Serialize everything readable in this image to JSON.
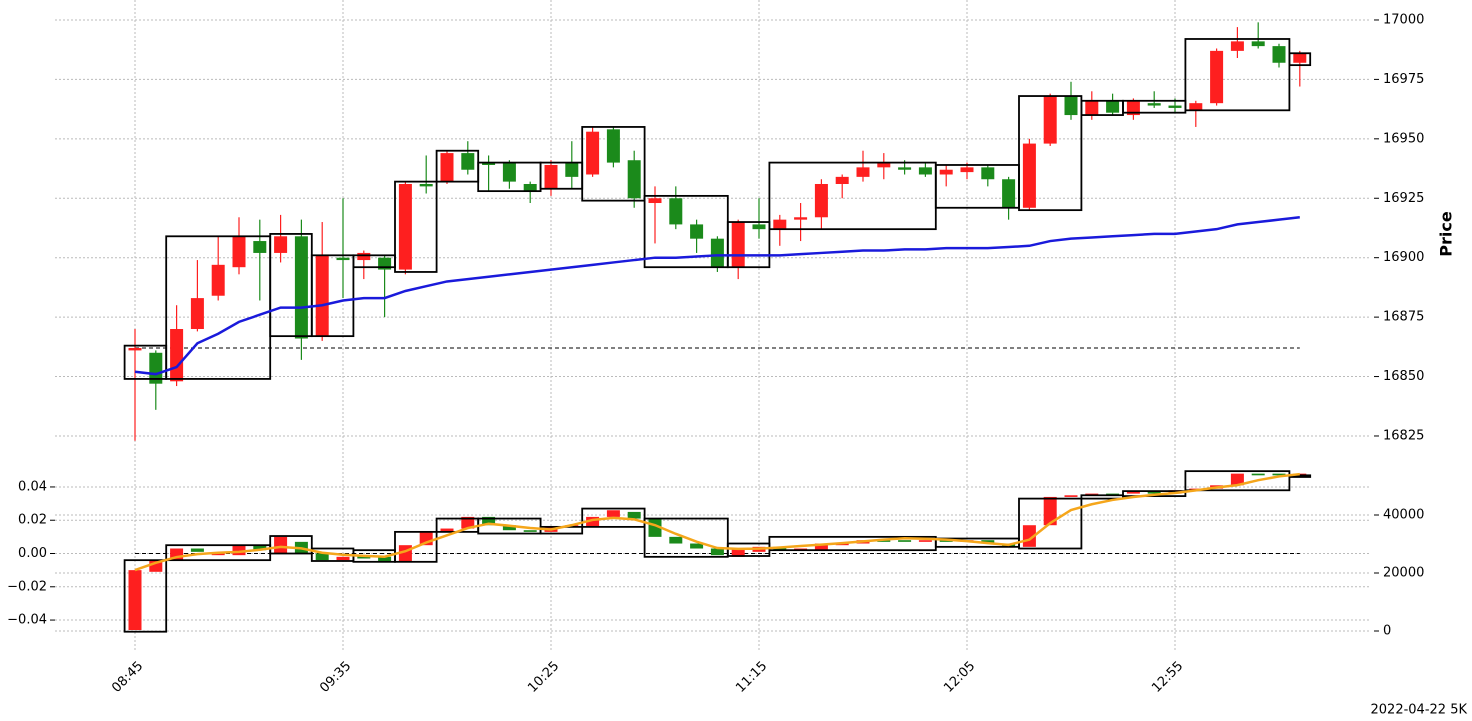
{
  "chart_data": [
    {
      "type": "candlestick",
      "ylabel": "Price",
      "categories": [
        "08:45",
        null,
        null,
        null,
        null,
        null,
        null,
        null,
        null,
        null,
        "09:35",
        null,
        null,
        null,
        null,
        null,
        null,
        null,
        null,
        null,
        "10:25",
        null,
        null,
        null,
        null,
        null,
        null,
        null,
        null,
        null,
        "11:15",
        null,
        null,
        null,
        null,
        null,
        null,
        null,
        null,
        null,
        "12:05",
        null,
        null,
        null,
        null,
        null,
        null,
        null,
        null,
        null,
        "12:55",
        null,
        null,
        null,
        null,
        null,
        null
      ],
      "open": [
        16861,
        16860,
        16848,
        16870,
        16884,
        16896,
        16907,
        16902,
        16909,
        16867,
        16900,
        16899,
        16900,
        16895,
        16931,
        16932,
        16944,
        16940,
        16940,
        16931,
        16929,
        16940,
        16935,
        16954,
        16941,
        16923,
        16925,
        16914,
        16908,
        16896,
        16914,
        16912,
        16916,
        16917,
        16931,
        16934,
        16938,
        16938,
        16938,
        16935,
        16936,
        16938,
        16933,
        16921,
        16948,
        16968,
        16960,
        16966,
        16960,
        16965,
        16964,
        16962,
        16965,
        16987,
        16991,
        16989,
        16982
      ],
      "high": [
        16870,
        16861,
        16880,
        16899,
        16909,
        16917,
        16916,
        16918,
        16916,
        16915,
        16925,
        16903,
        16901,
        16932,
        16943,
        16945,
        16949,
        16943,
        16941,
        16932,
        16941,
        16949,
        16955,
        16955,
        16945,
        16930,
        16930,
        16916,
        16909,
        16916,
        16925,
        16918,
        16923,
        16933,
        16935,
        16945,
        16944,
        16941,
        16940,
        16939,
        16940,
        16939,
        16934,
        16950,
        16969,
        16974,
        16970,
        16969,
        16967,
        16970,
        16967,
        16966,
        16988,
        16997,
        16999,
        16990,
        16987
      ],
      "low": [
        16823,
        16836,
        16846,
        16869,
        16882,
        16893,
        16882,
        16898,
        16857,
        16865,
        16883,
        16891,
        16875,
        16893,
        16927,
        16931,
        16935,
        16928,
        16929,
        16923,
        16926,
        16929,
        16934,
        16938,
        16921,
        16906,
        16912,
        16902,
        16894,
        16891,
        16908,
        16905,
        16907,
        16912,
        16925,
        16932,
        16933,
        16935,
        16934,
        16930,
        16933,
        16930,
        16916,
        16920,
        16947,
        16958,
        16958,
        16960,
        16958,
        16963,
        16961,
        16955,
        16964,
        16984,
        16988,
        16980,
        16972
      ],
      "close": [
        16862,
        16847,
        16870,
        16883,
        16897,
        16909,
        16902,
        16909,
        16866,
        16901,
        16899,
        16902,
        16895,
        16931,
        16930,
        16944,
        16937,
        16939,
        16932,
        16928,
        16939,
        16934,
        16953,
        16940,
        16925,
        16925,
        16914,
        16908,
        16896,
        16915,
        16912,
        16916,
        16917,
        16931,
        16934,
        16938,
        16940,
        16937,
        16935,
        16937,
        16938,
        16933,
        16921,
        16948,
        16968,
        16960,
        16966,
        16961,
        16966,
        16964,
        16963,
        16965,
        16987,
        16991,
        16989,
        16982,
        16986
      ],
      "up_color": "#fe1f1f",
      "down_color": "#1b8a1b",
      "boxes": [
        {
          "start": 0,
          "end": 1,
          "low": 16849,
          "high": 16863
        },
        {
          "start": 2,
          "end": 6,
          "low": 16849,
          "high": 16909
        },
        {
          "start": 7,
          "end": 8,
          "low": 16867,
          "high": 16910
        },
        {
          "start": 9,
          "end": 10,
          "low": 16867,
          "high": 16901
        },
        {
          "start": 11,
          "end": 12,
          "low": 16896,
          "high": 16901
        },
        {
          "start": 13,
          "end": 14,
          "low": 16894,
          "high": 16932
        },
        {
          "start": 15,
          "end": 16,
          "low": 16932,
          "high": 16945
        },
        {
          "start": 17,
          "end": 19,
          "low": 16928,
          "high": 16940
        },
        {
          "start": 20,
          "end": 21,
          "low": 16929,
          "high": 16940
        },
        {
          "start": 22,
          "end": 24,
          "low": 16924,
          "high": 16955
        },
        {
          "start": 25,
          "end": 28,
          "low": 16896,
          "high": 16926
        },
        {
          "start": 29,
          "end": 30,
          "low": 16896,
          "high": 16915
        },
        {
          "start": 31,
          "end": 38,
          "low": 16912,
          "high": 16940
        },
        {
          "start": 39,
          "end": 42,
          "low": 16921,
          "high": 16939
        },
        {
          "start": 43,
          "end": 45,
          "low": 16920,
          "high": 16968
        },
        {
          "start": 46,
          "end": 47,
          "low": 16960,
          "high": 16966
        },
        {
          "start": 48,
          "end": 50,
          "low": 16961,
          "high": 16966
        },
        {
          "start": 51,
          "end": 55,
          "low": 16962,
          "high": 16992
        },
        {
          "start": 56,
          "end": 56,
          "low": 16981,
          "high": 16986
        }
      ],
      "lines": [
        {
          "color": "#1a1adb",
          "values": [
            16852,
            16851,
            16854,
            16864,
            16868,
            16873,
            16876,
            16879,
            16879,
            16880,
            16882,
            16883,
            16883,
            16886,
            16888,
            16890,
            16891,
            16892,
            16893,
            16894,
            16895,
            16896,
            16897,
            16898,
            16899,
            16900,
            16900,
            16900.5,
            16901,
            16901,
            16901,
            16901,
            16901.5,
            16902,
            16902.5,
            16903,
            16903,
            16903.5,
            16903.5,
            16904,
            16904,
            16904,
            16904.5,
            16905,
            16907,
            16908,
            16908.5,
            16909,
            16909.5,
            16910,
            16910,
            16911,
            16912,
            16914,
            16915,
            16916,
            16917
          ]
        }
      ],
      "hlines": [
        {
          "value": 16862,
          "style": "dashed"
        }
      ],
      "ylim": [
        16817,
        17008.4
      ],
      "yticks": [
        16825,
        16850,
        16875,
        16900,
        16925,
        16950,
        16975,
        17000
      ],
      "grid": true
    },
    {
      "type": "candlestick",
      "open": [
        -0.046,
        -0.011,
        -0.004,
        0.003,
        -0.001,
        -0.001,
        0.005,
        0,
        0.007,
        0,
        -0.004,
        -0.001,
        -0.002,
        -0.005,
        0.005,
        0.013,
        0.015,
        0.022,
        0.017,
        0.014,
        0.013,
        0.016,
        0.016,
        0.022,
        0.025,
        0.021,
        0.01,
        0.006,
        0.003,
        -0.002,
        0.001,
        0.004,
        0.002,
        0.002,
        0.005,
        0.006,
        0.008,
        0.008,
        0.007,
        0.008,
        0.007,
        0.008,
        0.006,
        0.004,
        0.017,
        0.034,
        0.035,
        0.036,
        0.036,
        0.037,
        0.036,
        0.038,
        0.039,
        0.041,
        0.048,
        0.048,
        0.047
      ],
      "close": [
        -0.01,
        -0.004,
        0.003,
        0.001,
        0,
        0.005,
        0.002,
        0.01,
        0,
        -0.004,
        -0.002,
        -0.003,
        -0.005,
        0.005,
        0.013,
        0.015,
        0.022,
        0.017,
        0.014,
        0.013,
        0.016,
        0.017,
        0.022,
        0.026,
        0.021,
        0.01,
        0.006,
        0.003,
        -0.001,
        0.003,
        0.004,
        0.002,
        0.003,
        0.006,
        0.006,
        0.008,
        0.007,
        0.007,
        0.008,
        0.007,
        0.008,
        0.006,
        0.004,
        0.017,
        0.034,
        0.035,
        0.036,
        0.035,
        0.037,
        0.036,
        0.038,
        0.039,
        0.041,
        0.048,
        0.047,
        0.047,
        0.048
      ],
      "up_color": "#fe1f1f",
      "down_color": "#1b8a1b",
      "boxes": [
        {
          "start": 0,
          "end": 1,
          "low": -0.047,
          "high": -0.004
        },
        {
          "start": 2,
          "end": 6,
          "low": -0.004,
          "high": 0.005
        },
        {
          "start": 7,
          "end": 8,
          "low": 0,
          "high": 0.0105
        },
        {
          "start": 9,
          "end": 10,
          "low": -0.0045,
          "high": 0.003
        },
        {
          "start": 11,
          "end": 12,
          "low": -0.005,
          "high": 0.002
        },
        {
          "start": 13,
          "end": 14,
          "low": -0.005,
          "high": 0.013
        },
        {
          "start": 15,
          "end": 16,
          "low": 0.013,
          "high": 0.021
        },
        {
          "start": 17,
          "end": 19,
          "low": 0.012,
          "high": 0.021
        },
        {
          "start": 20,
          "end": 21,
          "low": 0.012,
          "high": 0.016
        },
        {
          "start": 22,
          "end": 24,
          "low": 0.016,
          "high": 0.027
        },
        {
          "start": 25,
          "end": 28,
          "low": -0.002,
          "high": 0.021
        },
        {
          "start": 29,
          "end": 30,
          "low": -0.0015,
          "high": 0.006
        },
        {
          "start": 31,
          "end": 38,
          "low": 0.002,
          "high": 0.01
        },
        {
          "start": 39,
          "end": 42,
          "low": 0.004,
          "high": 0.009
        },
        {
          "start": 43,
          "end": 45,
          "low": 0.003,
          "high": 0.033
        },
        {
          "start": 46,
          "end": 47,
          "low": 0.033,
          "high": 0.035
        },
        {
          "start": 48,
          "end": 50,
          "low": 0.0345,
          "high": 0.0375
        },
        {
          "start": 51,
          "end": 55,
          "low": 0.038,
          "high": 0.0495
        },
        {
          "start": 56,
          "end": 56,
          "low": 0.046,
          "high": 0.047
        }
      ],
      "lines": [
        {
          "color": "#f5a61b",
          "axis": "y2",
          "values": [
            21000,
            23500,
            25500,
            26500,
            27000,
            27300,
            28000,
            29000,
            28500,
            27000,
            26300,
            25900,
            25600,
            27500,
            30500,
            33000,
            35500,
            37000,
            36300,
            35500,
            35000,
            36500,
            38300,
            39000,
            38500,
            36500,
            33500,
            30800,
            28600,
            28300,
            28400,
            28800,
            29300,
            29800,
            30300,
            30900,
            31500,
            32000,
            31800,
            31500,
            31000,
            30300,
            29700,
            31500,
            37200,
            41700,
            43700,
            45200,
            46200,
            47000,
            47600,
            48500,
            49500,
            50300,
            52000,
            53300,
            54100
          ]
        }
      ],
      "hlines": [
        {
          "value": 0,
          "style": "dashed"
        }
      ],
      "ylim": [
        -0.058,
        0.0562
      ],
      "yticks": [
        {
          "value": -0.04,
          "label": "−0.04"
        },
        {
          "value": -0.02,
          "label": "−0.02"
        },
        {
          "value": 0,
          "label": "0.00"
        },
        0.02,
        0.04
      ],
      "y2lim": [
        -6552,
        58966
      ],
      "y2ticks": [
        0,
        20000,
        40000
      ],
      "grid": true
    }
  ],
  "footer": "2022-04-22 5K"
}
